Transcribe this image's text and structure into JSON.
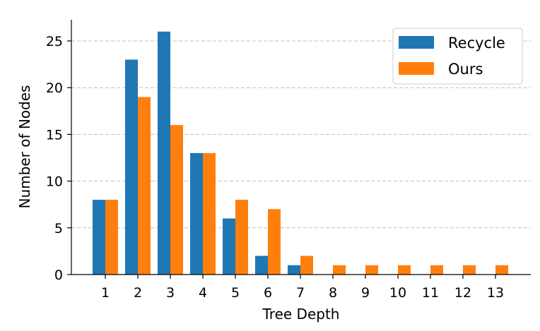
{
  "chart_data": {
    "type": "bar",
    "xlabel": "Tree Depth",
    "ylabel": "Number of Nodes",
    "categories": [
      "1",
      "2",
      "3",
      "4",
      "5",
      "6",
      "7",
      "8",
      "9",
      "10",
      "11",
      "12",
      "13"
    ],
    "series": [
      {
        "name": "Recycle",
        "color": "#1f77b4",
        "values": [
          8,
          23,
          26,
          13,
          6,
          2,
          1,
          0,
          0,
          0,
          0,
          0,
          0
        ]
      },
      {
        "name": "Ours",
        "color": "#ff7f0e",
        "values": [
          8,
          19,
          16,
          13,
          8,
          7,
          2,
          1,
          1,
          1,
          1,
          1,
          1
        ]
      }
    ],
    "ylim": [
      0,
      27.3
    ],
    "yticks": [
      0,
      5,
      10,
      15,
      20,
      25
    ],
    "grid": "y-dashed",
    "legend": "top-right"
  }
}
